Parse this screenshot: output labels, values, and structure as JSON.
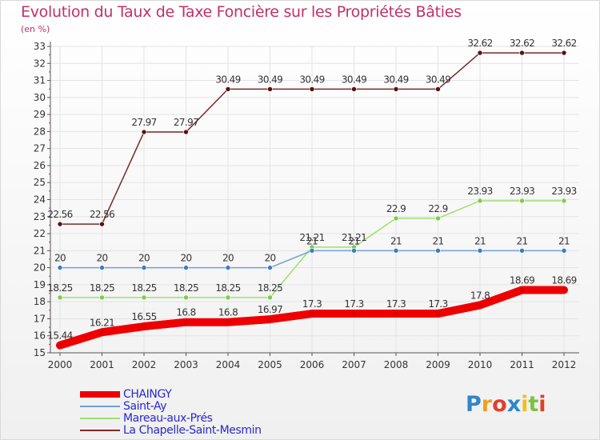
{
  "title": "Evolution du Taux de Taxe Foncière sur les Propriétés Bâties",
  "subtitle": "(en %)",
  "chart_data": {
    "type": "line",
    "title": "Evolution du Taux de Taxe Foncière sur les Propriétés Bâties",
    "ylabel": "(en %)",
    "xlabel": "",
    "x": [
      "2000",
      "2001",
      "2002",
      "2003",
      "2004",
      "2005",
      "2006",
      "2007",
      "2008",
      "2009",
      "2010",
      "2011",
      "2012"
    ],
    "ylim": [
      15,
      33
    ],
    "yticks": [
      "15",
      "16",
      "17",
      "18",
      "19",
      "20",
      "21",
      "22",
      "23",
      "24",
      "25",
      "26",
      "27",
      "28",
      "29",
      "30",
      "31",
      "32",
      "33"
    ],
    "series": [
      {
        "name": "CHAINGY",
        "color": "#ee0000",
        "marker": "#dd0000",
        "values": [
          15.44,
          16.21,
          16.55,
          16.8,
          16.8,
          16.97,
          17.3,
          17.3,
          17.3,
          17.3,
          17.8,
          18.69,
          18.69
        ],
        "labels": [
          "15.44",
          "16.21",
          "16.55",
          "16.8",
          "16.8",
          "16.97",
          "17.3",
          "17.3",
          "17.3",
          "17.3",
          "17.8",
          "18.69",
          "18.69"
        ]
      },
      {
        "name": "Saint-Ay",
        "color": "#6fa0d4",
        "marker": "#3a7cc4",
        "values": [
          20,
          20,
          20,
          20,
          20,
          20,
          21,
          21,
          21,
          21,
          21,
          21,
          21
        ],
        "labels": [
          "20",
          "20",
          "20",
          "20",
          "20",
          "20",
          "21",
          "21",
          "21",
          "21",
          "21",
          "21",
          "21"
        ]
      },
      {
        "name": "Mareau-aux-Prés",
        "color": "#9ee06e",
        "marker": "#7ccc48",
        "values": [
          18.25,
          18.25,
          18.25,
          18.25,
          18.25,
          18.25,
          21.21,
          21.21,
          22.9,
          22.9,
          23.93,
          23.93,
          23.93
        ],
        "labels": [
          "18.25",
          "18.25",
          "18.25",
          "18.25",
          "18.25",
          "18.25",
          "21.21",
          "21.21",
          "22.9",
          "22.9",
          "23.93",
          "23.93",
          "23.93"
        ]
      },
      {
        "name": "La Chapelle-Saint-Mesmin",
        "color": "#7a2828",
        "marker": "#5a1010",
        "values": [
          22.56,
          22.56,
          27.97,
          27.97,
          30.49,
          30.49,
          30.49,
          30.49,
          30.49,
          30.49,
          32.62,
          32.62,
          32.62
        ],
        "labels": [
          "22.56",
          "22.56",
          "27.97",
          "27.97",
          "30.49",
          "30.49",
          "30.49",
          "30.49",
          "30.49",
          "30.49",
          "32.62",
          "32.62",
          "32.62"
        ]
      }
    ]
  },
  "legend": [
    {
      "label": "CHAINGY",
      "color": "#ee0000"
    },
    {
      "label": "Saint-Ay",
      "color": "#6fa0d4"
    },
    {
      "label": "Mareau-aux-Prés",
      "color": "#9ee06e"
    },
    {
      "label": "La Chapelle-Saint-Mesmin",
      "color": "#7a2828"
    }
  ],
  "brand": {
    "letters": [
      {
        "ch": "P",
        "color": "#2e86c8"
      },
      {
        "ch": "r",
        "color": "#f0a020"
      },
      {
        "ch": "o",
        "color": "#e0402a"
      },
      {
        "ch": "x",
        "color": "#2e86c8"
      },
      {
        "ch": "i",
        "color": "#f0c020"
      },
      {
        "ch": "t",
        "color": "#7cc242"
      },
      {
        "ch": "i",
        "color": "#e0402a"
      }
    ]
  }
}
